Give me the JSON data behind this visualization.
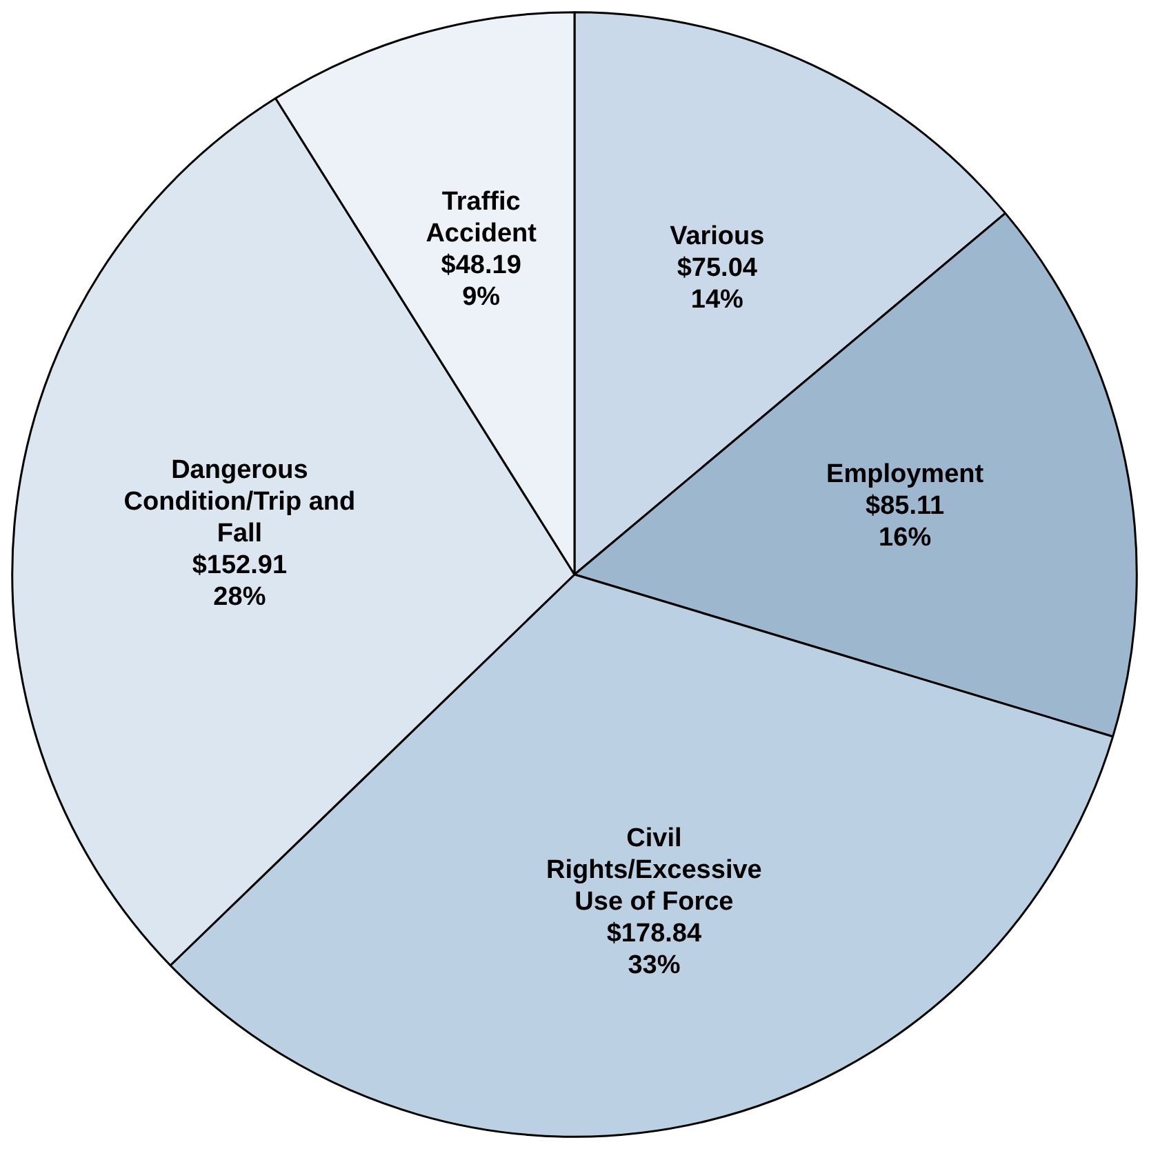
{
  "chart_data": {
    "type": "pie",
    "categories": [
      "Various",
      "Employment",
      "Civil Rights/Excessive Use of Force",
      "Dangerous Condition/Trip and Fall",
      "Traffic Accident"
    ],
    "values": [
      75.04,
      85.11,
      178.84,
      152.91,
      48.19
    ],
    "value_labels": [
      "$75.04\n14%",
      "$85.11\n16%",
      "$178.84\n33%",
      "$152.91\n28%",
      "$48.19\n9%"
    ],
    "colors": [
      "#c9d9e9",
      "#9db7cf",
      "#bcd0e3",
      "#dce6f0",
      "#edf2f8"
    ],
    "legend": false
  }
}
